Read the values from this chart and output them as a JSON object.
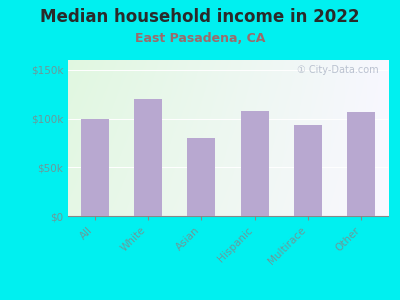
{
  "title": "Median household income in 2022",
  "subtitle": "East Pasadena, CA",
  "categories": [
    "All",
    "White",
    "Asian",
    "Hispanic",
    "Multirace",
    "Other"
  ],
  "values": [
    100000,
    120000,
    80000,
    108000,
    93000,
    107000
  ],
  "bar_color": "#b8a8d0",
  "background_outer": "#00f0f0",
  "title_color": "#2a2a2a",
  "subtitle_color": "#9b6b6b",
  "tick_label_color": "#6a9a9a",
  "ylabel_ticks": [
    0,
    50000,
    100000,
    150000
  ],
  "ylabel_labels": [
    "$0",
    "$50k",
    "$100k",
    "$150k"
  ],
  "ylim": [
    0,
    160000
  ],
  "watermark": "① City-Data.com",
  "title_fontsize": 12,
  "subtitle_fontsize": 9,
  "tick_fontsize": 7.5,
  "watermark_fontsize": 7
}
